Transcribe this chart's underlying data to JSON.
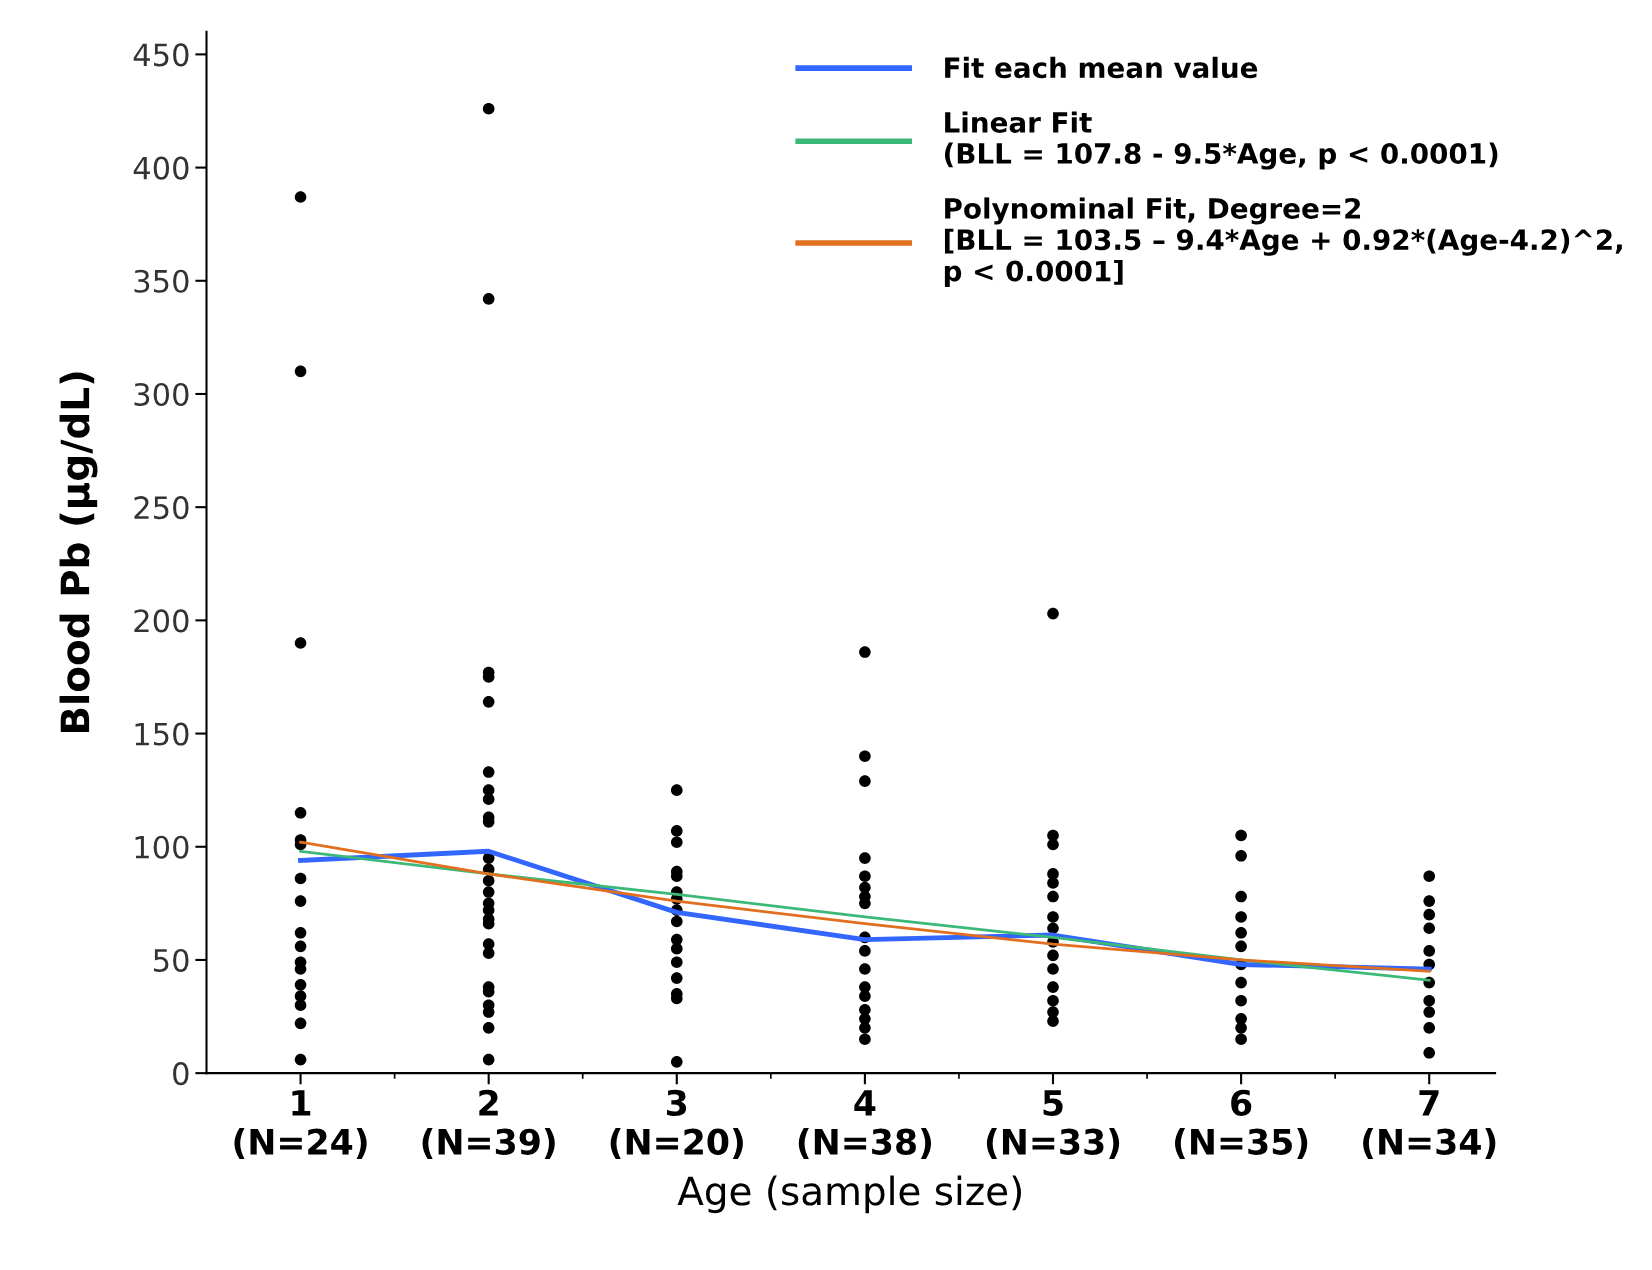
{
  "chart_data": {
    "type": "scatter",
    "xlabel": "Age (sample size)",
    "ylabel": "Blood Pb (µg/dL)",
    "categories": [
      "1\n(N=24)",
      "2\n(N=39)",
      "3\n(N=20)",
      "4\n(N=38)",
      "5\n(N=33)",
      "6\n(N=35)",
      "7\n(N=34)"
    ],
    "ylim": [
      0,
      460
    ],
    "yticks": [
      0,
      50,
      100,
      150,
      200,
      250,
      300,
      350,
      400,
      450
    ],
    "grid": false,
    "legend": "top right",
    "series": [
      {
        "color": "#000000",
        "marker": "circle",
        "x": [
          "1\n(N=24)",
          "1\n(N=24)",
          "1\n(N=24)",
          "1\n(N=24)",
          "1\n(N=24)",
          "1\n(N=24)",
          "1\n(N=24)",
          "1\n(N=24)",
          "1\n(N=24)",
          "1\n(N=24)",
          "1\n(N=24)",
          "1\n(N=24)",
          "1\n(N=24)",
          "1\n(N=24)",
          "1\n(N=24)",
          "1\n(N=24)",
          "1\n(N=24)",
          "2\n(N=39)",
          "2\n(N=39)",
          "2\n(N=39)",
          "2\n(N=39)",
          "2\n(N=39)",
          "2\n(N=39)",
          "2\n(N=39)",
          "2\n(N=39)",
          "2\n(N=39)",
          "2\n(N=39)",
          "2\n(N=39)",
          "2\n(N=39)",
          "2\n(N=39)",
          "2\n(N=39)",
          "2\n(N=39)",
          "2\n(N=39)",
          "2\n(N=39)",
          "2\n(N=39)",
          "2\n(N=39)",
          "2\n(N=39)",
          "2\n(N=39)",
          "2\n(N=39)",
          "2\n(N=39)",
          "2\n(N=39)",
          "2\n(N=39)",
          "2\n(N=39)",
          "3\n(N=20)",
          "3\n(N=20)",
          "3\n(N=20)",
          "3\n(N=20)",
          "3\n(N=20)",
          "3\n(N=20)",
          "3\n(N=20)",
          "3\n(N=20)",
          "3\n(N=20)",
          "3\n(N=20)",
          "3\n(N=20)",
          "3\n(N=20)",
          "3\n(N=20)",
          "3\n(N=20)",
          "3\n(N=20)",
          "3\n(N=20)",
          "4\n(N=38)",
          "4\n(N=38)",
          "4\n(N=38)",
          "4\n(N=38)",
          "4\n(N=38)",
          "4\n(N=38)",
          "4\n(N=38)",
          "4\n(N=38)",
          "4\n(N=38)",
          "4\n(N=38)",
          "4\n(N=38)",
          "4\n(N=38)",
          "4\n(N=38)",
          "4\n(N=38)",
          "4\n(N=38)",
          "4\n(N=38)",
          "4\n(N=38)",
          "5\n(N=33)",
          "5\n(N=33)",
          "5\n(N=33)",
          "5\n(N=33)",
          "5\n(N=33)",
          "5\n(N=33)",
          "5\n(N=33)",
          "5\n(N=33)",
          "5\n(N=33)",
          "5\n(N=33)",
          "5\n(N=33)",
          "5\n(N=33)",
          "5\n(N=33)",
          "5\n(N=33)",
          "5\n(N=33)",
          "6\n(N=35)",
          "6\n(N=35)",
          "6\n(N=35)",
          "6\n(N=35)",
          "6\n(N=35)",
          "6\n(N=35)",
          "6\n(N=35)",
          "6\n(N=35)",
          "6\n(N=35)",
          "6\n(N=35)",
          "6\n(N=35)",
          "6\n(N=35)",
          "7\n(N=34)",
          "7\n(N=34)",
          "7\n(N=34)",
          "7\n(N=34)",
          "7\n(N=34)",
          "7\n(N=34)",
          "7\n(N=34)",
          "7\n(N=34)",
          "7\n(N=34)",
          "7\n(N=34)",
          "7\n(N=34)"
        ],
        "values": [
          387,
          310,
          190,
          115,
          103,
          101,
          86,
          76,
          62,
          56,
          49,
          46,
          39,
          34,
          30,
          22,
          6,
          426,
          342,
          177,
          175,
          164,
          133,
          125,
          121,
          113,
          111,
          95,
          90,
          85,
          80,
          75,
          72,
          68,
          66,
          57,
          53,
          38,
          36,
          30,
          27,
          20,
          6,
          125,
          107,
          102,
          89,
          87,
          80,
          77,
          72,
          67,
          59,
          55,
          49,
          42,
          35,
          33,
          5,
          186,
          140,
          129,
          95,
          87,
          82,
          78,
          75,
          60,
          54,
          46,
          38,
          34,
          28,
          24,
          20,
          15,
          203,
          105,
          101,
          88,
          84,
          78,
          69,
          64,
          58,
          52,
          46,
          38,
          32,
          27,
          23,
          105,
          96,
          78,
          69,
          62,
          56,
          48,
          40,
          32,
          24,
          20,
          15,
          87,
          76,
          70,
          64,
          54,
          48,
          40,
          32,
          27,
          20,
          9
        ]
      },
      {
        "type": "line",
        "name": "Fit each mean value",
        "color": "#3366ff",
        "values": [
          94,
          98,
          71,
          59,
          61,
          48,
          46
        ]
      },
      {
        "type": "line",
        "name": "Linear Fit\n(BLL = 107.8 - 9.5*Age, p < 0.0001)",
        "color": "#3cb878",
        "values": [
          98,
          88,
          79,
          69,
          60,
          50,
          41
        ]
      },
      {
        "type": "line",
        "name": "Polynominal Fit, Degree=2\n[BLL = 103.5 – 9.4*Age + 0.92*(Age-4.2)^2,\np < 0.0001]",
        "color": "#e07020",
        "values": [
          102,
          88,
          76,
          66,
          57,
          50,
          45
        ]
      }
    ]
  }
}
